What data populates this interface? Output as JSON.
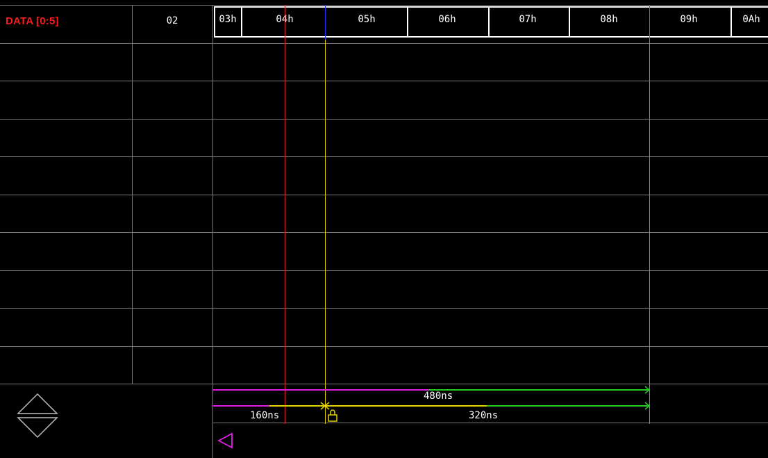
{
  "signal": {
    "name": "DATA [0:5]",
    "cursor_value": "02"
  },
  "bus_values": [
    "03h",
    "04h",
    "05h",
    "06h",
    "07h",
    "08h",
    "09h",
    "0Ah"
  ],
  "measurements": {
    "total": "480ns",
    "left": "160ns",
    "right": "320ns"
  },
  "colors": {
    "signal_name": "#ff1a1a",
    "cursor_red": "#e02020",
    "cursor_yellow": "#e6d000",
    "cursor_green": "#22cc22",
    "cursor_blue": "#2030ff",
    "marker_magenta": "#e020e0",
    "grid": "#7a7a7a"
  },
  "icons": {
    "scroll": "up-down-triangle-icon",
    "nav": "left-triangle-icon",
    "lock": "lock-icon"
  }
}
